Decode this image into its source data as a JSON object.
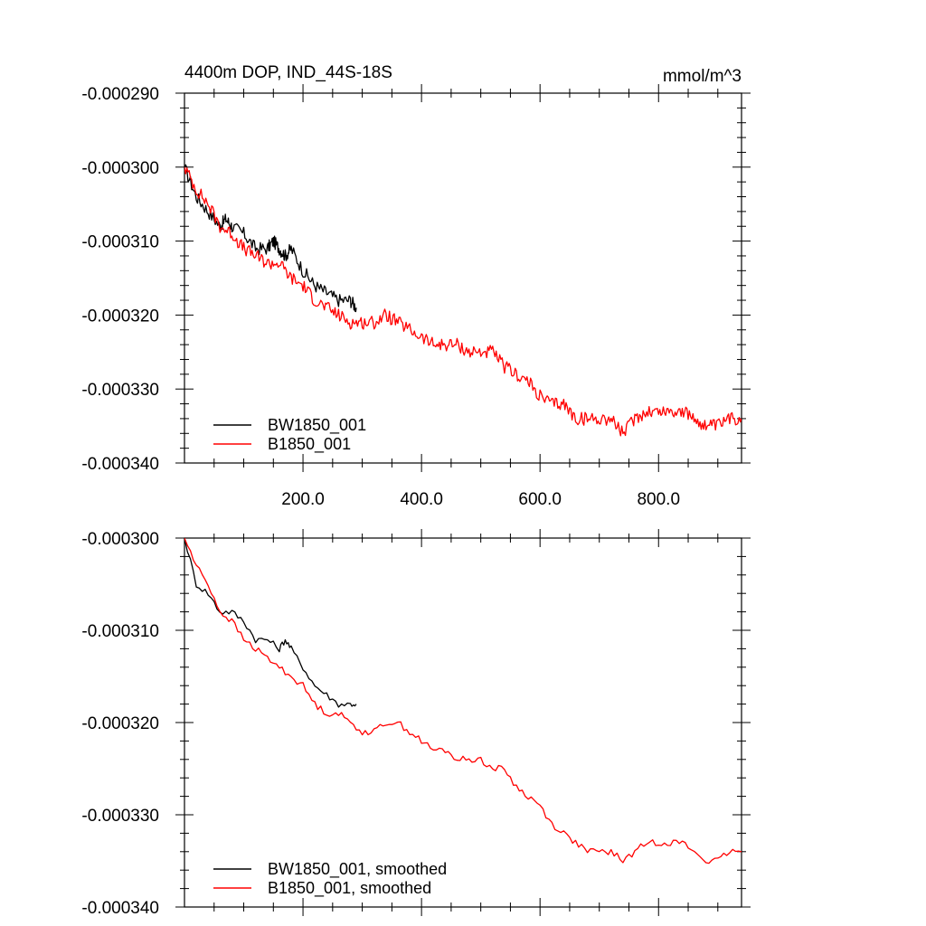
{
  "chart_data": [
    {
      "type": "line",
      "title": "4400m DOP, IND_44S-18S",
      "units": "mmol/m^3",
      "xlim": [
        0,
        940
      ],
      "ylim": [
        -0.00034,
        -0.00029
      ],
      "xticks": [
        200,
        400,
        600,
        800
      ],
      "xtick_labels": [
        "200.0",
        "400.0",
        "600.0",
        "800.0"
      ],
      "yticks": [
        -0.00029,
        -0.0003,
        -0.00031,
        -0.00032,
        -0.00033,
        -0.00034
      ],
      "ytick_labels": [
        "-0.000290",
        "-0.000300",
        "-0.000310",
        "-0.000320",
        "-0.000330",
        "-0.000340"
      ],
      "legend_position": "bottom-left",
      "series": [
        {
          "name": "BW1850_001",
          "color": "#000000",
          "smooth": false,
          "x": [
            0,
            20,
            40,
            60,
            70,
            80,
            100,
            120,
            140,
            150,
            160,
            170,
            180,
            200,
            220,
            240,
            260,
            280,
            290
          ],
          "y": [
            -0.0003,
            -0.000304,
            -0.000306,
            -0.000308,
            -0.000307,
            -0.000308,
            -0.000309,
            -0.000311,
            -0.000311,
            -0.00031,
            -0.000311,
            -0.000312,
            -0.000311,
            -0.000314,
            -0.000316,
            -0.000317,
            -0.000318,
            -0.000318,
            -0.000319
          ]
        },
        {
          "name": "B1850_001",
          "color": "#ff0000",
          "smooth": false,
          "x": [
            0,
            20,
            40,
            60,
            80,
            100,
            120,
            140,
            160,
            180,
            200,
            220,
            240,
            260,
            280,
            300,
            320,
            340,
            360,
            380,
            400,
            420,
            440,
            460,
            480,
            500,
            520,
            540,
            560,
            580,
            600,
            620,
            640,
            660,
            680,
            700,
            720,
            740,
            760,
            780,
            800,
            820,
            840,
            860,
            880,
            900,
            920,
            940
          ],
          "y": [
            -0.0003,
            -0.000303,
            -0.000305,
            -0.000308,
            -0.000309,
            -0.000311,
            -0.000312,
            -0.000313,
            -0.000313,
            -0.000315,
            -0.000316,
            -0.000318,
            -0.000319,
            -0.00032,
            -0.000321,
            -0.000321,
            -0.000321,
            -0.00032,
            -0.000321,
            -0.000322,
            -0.000323,
            -0.000324,
            -0.000324,
            -0.000324,
            -0.000325,
            -0.000325,
            -0.000325,
            -0.000327,
            -0.000328,
            -0.000329,
            -0.000331,
            -0.000332,
            -0.000332,
            -0.000334,
            -0.000334,
            -0.000334,
            -0.000334,
            -0.000336,
            -0.000334,
            -0.000333,
            -0.000333,
            -0.000333,
            -0.000333,
            -0.000334,
            -0.000335,
            -0.000335,
            -0.000334,
            -0.000334
          ]
        }
      ]
    },
    {
      "type": "line",
      "title": "",
      "xlim": [
        0,
        940
      ],
      "ylim": [
        -0.00034,
        -0.0003
      ],
      "xticks": [
        200,
        400,
        600,
        800
      ],
      "xtick_labels": [],
      "yticks": [
        -0.0003,
        -0.00031,
        -0.00032,
        -0.00033,
        -0.00034
      ],
      "ytick_labels": [
        "-0.000300",
        "-0.000310",
        "-0.000320",
        "-0.000330",
        "-0.000340"
      ],
      "legend_position": "bottom-left",
      "series": [
        {
          "name": "BW1850_001, smoothed",
          "color": "#000000",
          "smooth": true,
          "x": [
            0,
            20,
            40,
            60,
            80,
            100,
            120,
            140,
            160,
            170,
            180,
            200,
            220,
            240,
            260,
            280,
            290
          ],
          "y": [
            -0.0003,
            -0.000305,
            -0.000306,
            -0.000308,
            -0.000308,
            -0.000309,
            -0.000311,
            -0.000311,
            -0.000312,
            -0.000311,
            -0.000312,
            -0.000314,
            -0.000316,
            -0.000317,
            -0.000318,
            -0.000318,
            -0.000318
          ]
        },
        {
          "name": "B1850_001, smoothed",
          "color": "#ff0000",
          "smooth": true,
          "x": [
            0,
            20,
            40,
            60,
            80,
            100,
            120,
            140,
            160,
            180,
            200,
            220,
            240,
            260,
            280,
            300,
            320,
            340,
            360,
            380,
            400,
            420,
            440,
            460,
            480,
            500,
            520,
            540,
            560,
            580,
            600,
            620,
            640,
            660,
            680,
            700,
            720,
            740,
            760,
            780,
            800,
            820,
            840,
            860,
            880,
            900,
            920,
            940
          ],
          "y": [
            -0.0003,
            -0.000303,
            -0.000305,
            -0.000308,
            -0.000309,
            -0.000311,
            -0.000312,
            -0.000313,
            -0.000314,
            -0.000315,
            -0.000316,
            -0.000318,
            -0.000319,
            -0.000319,
            -0.00032,
            -0.000321,
            -0.000321,
            -0.00032,
            -0.00032,
            -0.000321,
            -0.000322,
            -0.000323,
            -0.000323,
            -0.000324,
            -0.000324,
            -0.000324,
            -0.000325,
            -0.000325,
            -0.000327,
            -0.000328,
            -0.000329,
            -0.000331,
            -0.000332,
            -0.000333,
            -0.000334,
            -0.000334,
            -0.000334,
            -0.000335,
            -0.000334,
            -0.000333,
            -0.000333,
            -0.000333,
            -0.000333,
            -0.000334,
            -0.000335,
            -0.000335,
            -0.000334,
            -0.000334
          ]
        }
      ]
    }
  ]
}
